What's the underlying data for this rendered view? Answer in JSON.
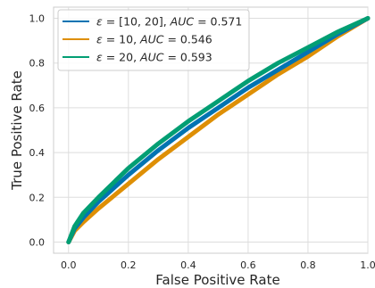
{
  "chart_data": {
    "type": "line",
    "xlabel": "False Positive Rate",
    "ylabel": "True Positive Rate",
    "xlim": [
      -0.05,
      1.0
    ],
    "ylim": [
      -0.05,
      1.05
    ],
    "x_ticks": [
      "0.0",
      "0.2",
      "0.4",
      "0.6",
      "0.8",
      "1.0"
    ],
    "y_ticks": [
      "0.0",
      "0.2",
      "0.4",
      "0.6",
      "0.8",
      "1.0"
    ],
    "grid": true,
    "legend_position": "upper-left",
    "series": [
      {
        "name": "ε = [10, 20], AUC = 0.571",
        "legend_eps": "[10, 20]",
        "legend_auc": "0.571",
        "color": "#0173b2",
        "x": [
          0.0,
          0.02,
          0.05,
          0.1,
          0.2,
          0.3,
          0.4,
          0.5,
          0.6,
          0.7,
          0.8,
          0.9,
          1.0
        ],
        "y": [
          0.0,
          0.06,
          0.11,
          0.18,
          0.3,
          0.41,
          0.51,
          0.6,
          0.69,
          0.77,
          0.85,
          0.93,
          1.0
        ]
      },
      {
        "name": "ε = 10, AUC = 0.546",
        "legend_eps": "10",
        "legend_auc": "0.546",
        "color": "#de8f05",
        "x": [
          0.0,
          0.02,
          0.05,
          0.1,
          0.2,
          0.3,
          0.4,
          0.5,
          0.6,
          0.7,
          0.8,
          0.9,
          1.0
        ],
        "y": [
          0.0,
          0.05,
          0.09,
          0.15,
          0.26,
          0.37,
          0.47,
          0.57,
          0.66,
          0.75,
          0.83,
          0.92,
          1.0
        ]
      },
      {
        "name": "ε = 20, AUC = 0.593",
        "legend_eps": "20",
        "legend_auc": "0.593",
        "color": "#029e73",
        "x": [
          0.0,
          0.02,
          0.05,
          0.1,
          0.2,
          0.3,
          0.4,
          0.5,
          0.6,
          0.7,
          0.8,
          0.9,
          1.0
        ],
        "y": [
          0.0,
          0.07,
          0.13,
          0.2,
          0.33,
          0.44,
          0.54,
          0.63,
          0.72,
          0.8,
          0.87,
          0.94,
          1.0
        ]
      }
    ]
  }
}
